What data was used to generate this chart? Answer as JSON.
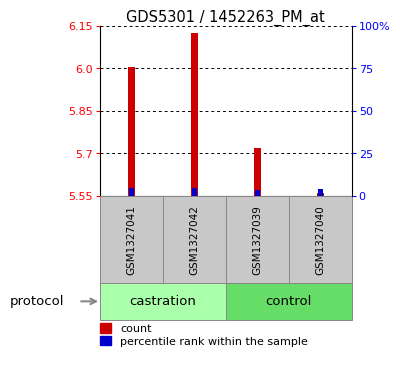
{
  "title": "GDS5301 / 1452263_PM_at",
  "samples": [
    "GSM1327041",
    "GSM1327042",
    "GSM1327039",
    "GSM1327040"
  ],
  "groups": [
    {
      "name": "castration",
      "indices": [
        0,
        1
      ],
      "color": "#90EE90"
    },
    {
      "name": "control",
      "indices": [
        2,
        3
      ],
      "color": "#66CC66"
    }
  ],
  "red_bar_tops": [
    6.003,
    6.123,
    5.717,
    5.558
  ],
  "blue_bar_tops": [
    5.578,
    5.577,
    5.571,
    5.575
  ],
  "bar_bottom": 5.55,
  "ylim_left": [
    5.55,
    6.15
  ],
  "ylim_right": [
    0,
    100
  ],
  "left_ticks": [
    5.55,
    5.7,
    5.85,
    6.0,
    6.15
  ],
  "right_ticks": [
    0,
    25,
    50,
    75,
    100
  ],
  "right_tick_labels": [
    "0",
    "25",
    "50",
    "75",
    "100%"
  ],
  "red_color": "#CC0000",
  "blue_color": "#0000CC",
  "red_bar_width": 0.12,
  "blue_bar_width": 0.08,
  "title_fontsize": 10.5,
  "tick_fontsize": 8,
  "sample_fontsize": 7.5,
  "group_label_fontsize": 9.5,
  "protocol_fontsize": 9.5,
  "legend_fontsize": 8,
  "background_color": "#ffffff",
  "sample_box_color": "#C8C8C8",
  "group_box_color_castration": "#AAFFAA",
  "group_box_color_control": "#66DD66"
}
